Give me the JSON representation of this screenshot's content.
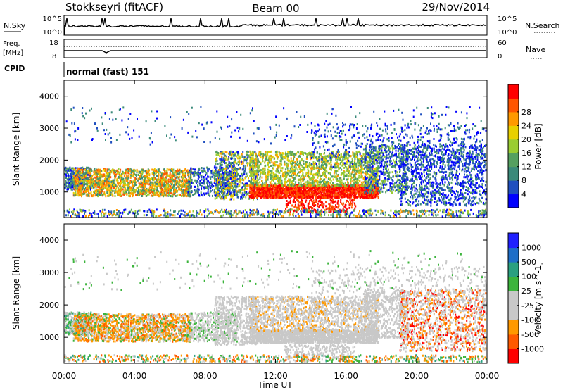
{
  "header": {
    "station": "Stokkseyri (fitACF)",
    "beam": "Beam 00",
    "date": "29/Nov/2014"
  },
  "panels": {
    "nsky": {
      "left_label": "N.Sky",
      "right_label": "N.Search",
      "left_ticks": [
        "10^5",
        "10^0"
      ],
      "right_ticks": [
        "10^5",
        "10^0"
      ]
    },
    "freq": {
      "left_label_1": "Freq.",
      "left_label_2": "[MHz]",
      "right_label": "Nave",
      "left_ticks": [
        "18",
        "8"
      ],
      "right_ticks": [
        "60",
        "0"
      ]
    },
    "cpid": {
      "label": "CPID",
      "value": "normal (fast) 151"
    }
  },
  "colors": {
    "power": [
      "#0000ff",
      "#1f4fbf",
      "#3a8a7a",
      "#55a060",
      "#9acd32",
      "#e8d000",
      "#ff9900",
      "#ff5500",
      "#ff0000"
    ],
    "velocity": [
      "#ff0000",
      "#ff5a00",
      "#ff9900",
      "#c8c8c8",
      "#c8c8c8",
      "#3cb43c",
      "#2aa080",
      "#1e6ec8",
      "#2020ff"
    ],
    "ground_scatter": "#c8c8c8"
  },
  "chart_data": [
    {
      "type": "heatmap",
      "name": "power",
      "xlabel": "",
      "ylabel": "Slant Range [km]",
      "x_range_hours": [
        0,
        24
      ],
      "ylim": [
        200,
        4500
      ],
      "y_ticks": [
        "1000",
        "2000",
        "3000",
        "4000"
      ],
      "colorbar": {
        "label": "Power [dB]",
        "ticks": [
          "4",
          "8",
          "12",
          "16",
          "20",
          "24",
          "28"
        ]
      }
    },
    {
      "type": "heatmap",
      "name": "velocity",
      "xlabel": "Time UT",
      "ylabel": "Slant Range [km]",
      "x_range_hours": [
        0,
        24
      ],
      "x_ticks": [
        "00:00",
        "04:00",
        "08:00",
        "12:00",
        "16:00",
        "20:00",
        "00:00"
      ],
      "ylim": [
        200,
        4500
      ],
      "y_ticks": [
        "1000",
        "2000",
        "3000",
        "4000"
      ],
      "colorbar": {
        "label": "Velocity [m s^-1]",
        "ticks": [
          "1000",
          "500",
          "100",
          "25",
          "-25",
          "-100",
          "-500",
          "-1000"
        ]
      }
    }
  ]
}
